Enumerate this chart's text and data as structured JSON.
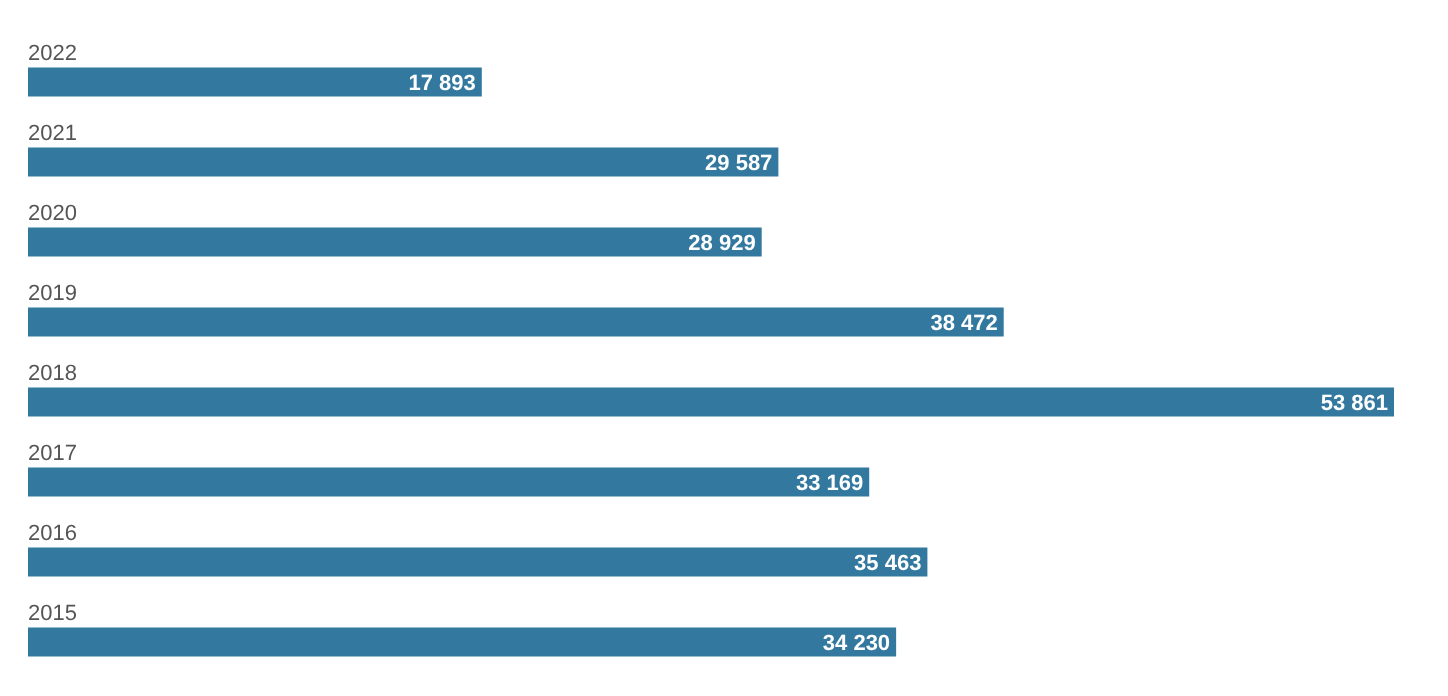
{
  "chart_data": {
    "type": "bar",
    "orientation": "horizontal",
    "categories": [
      "2022",
      "2021",
      "2020",
      "2019",
      "2018",
      "2017",
      "2016",
      "2015"
    ],
    "values": [
      17893,
      29587,
      28929,
      38472,
      53861,
      33169,
      35463,
      34230
    ],
    "value_labels": [
      "17 893",
      "29 587",
      "28 929",
      "38 472",
      "53 861",
      "33 169",
      "35 463",
      "34 230"
    ],
    "color": "#32789f"
  }
}
